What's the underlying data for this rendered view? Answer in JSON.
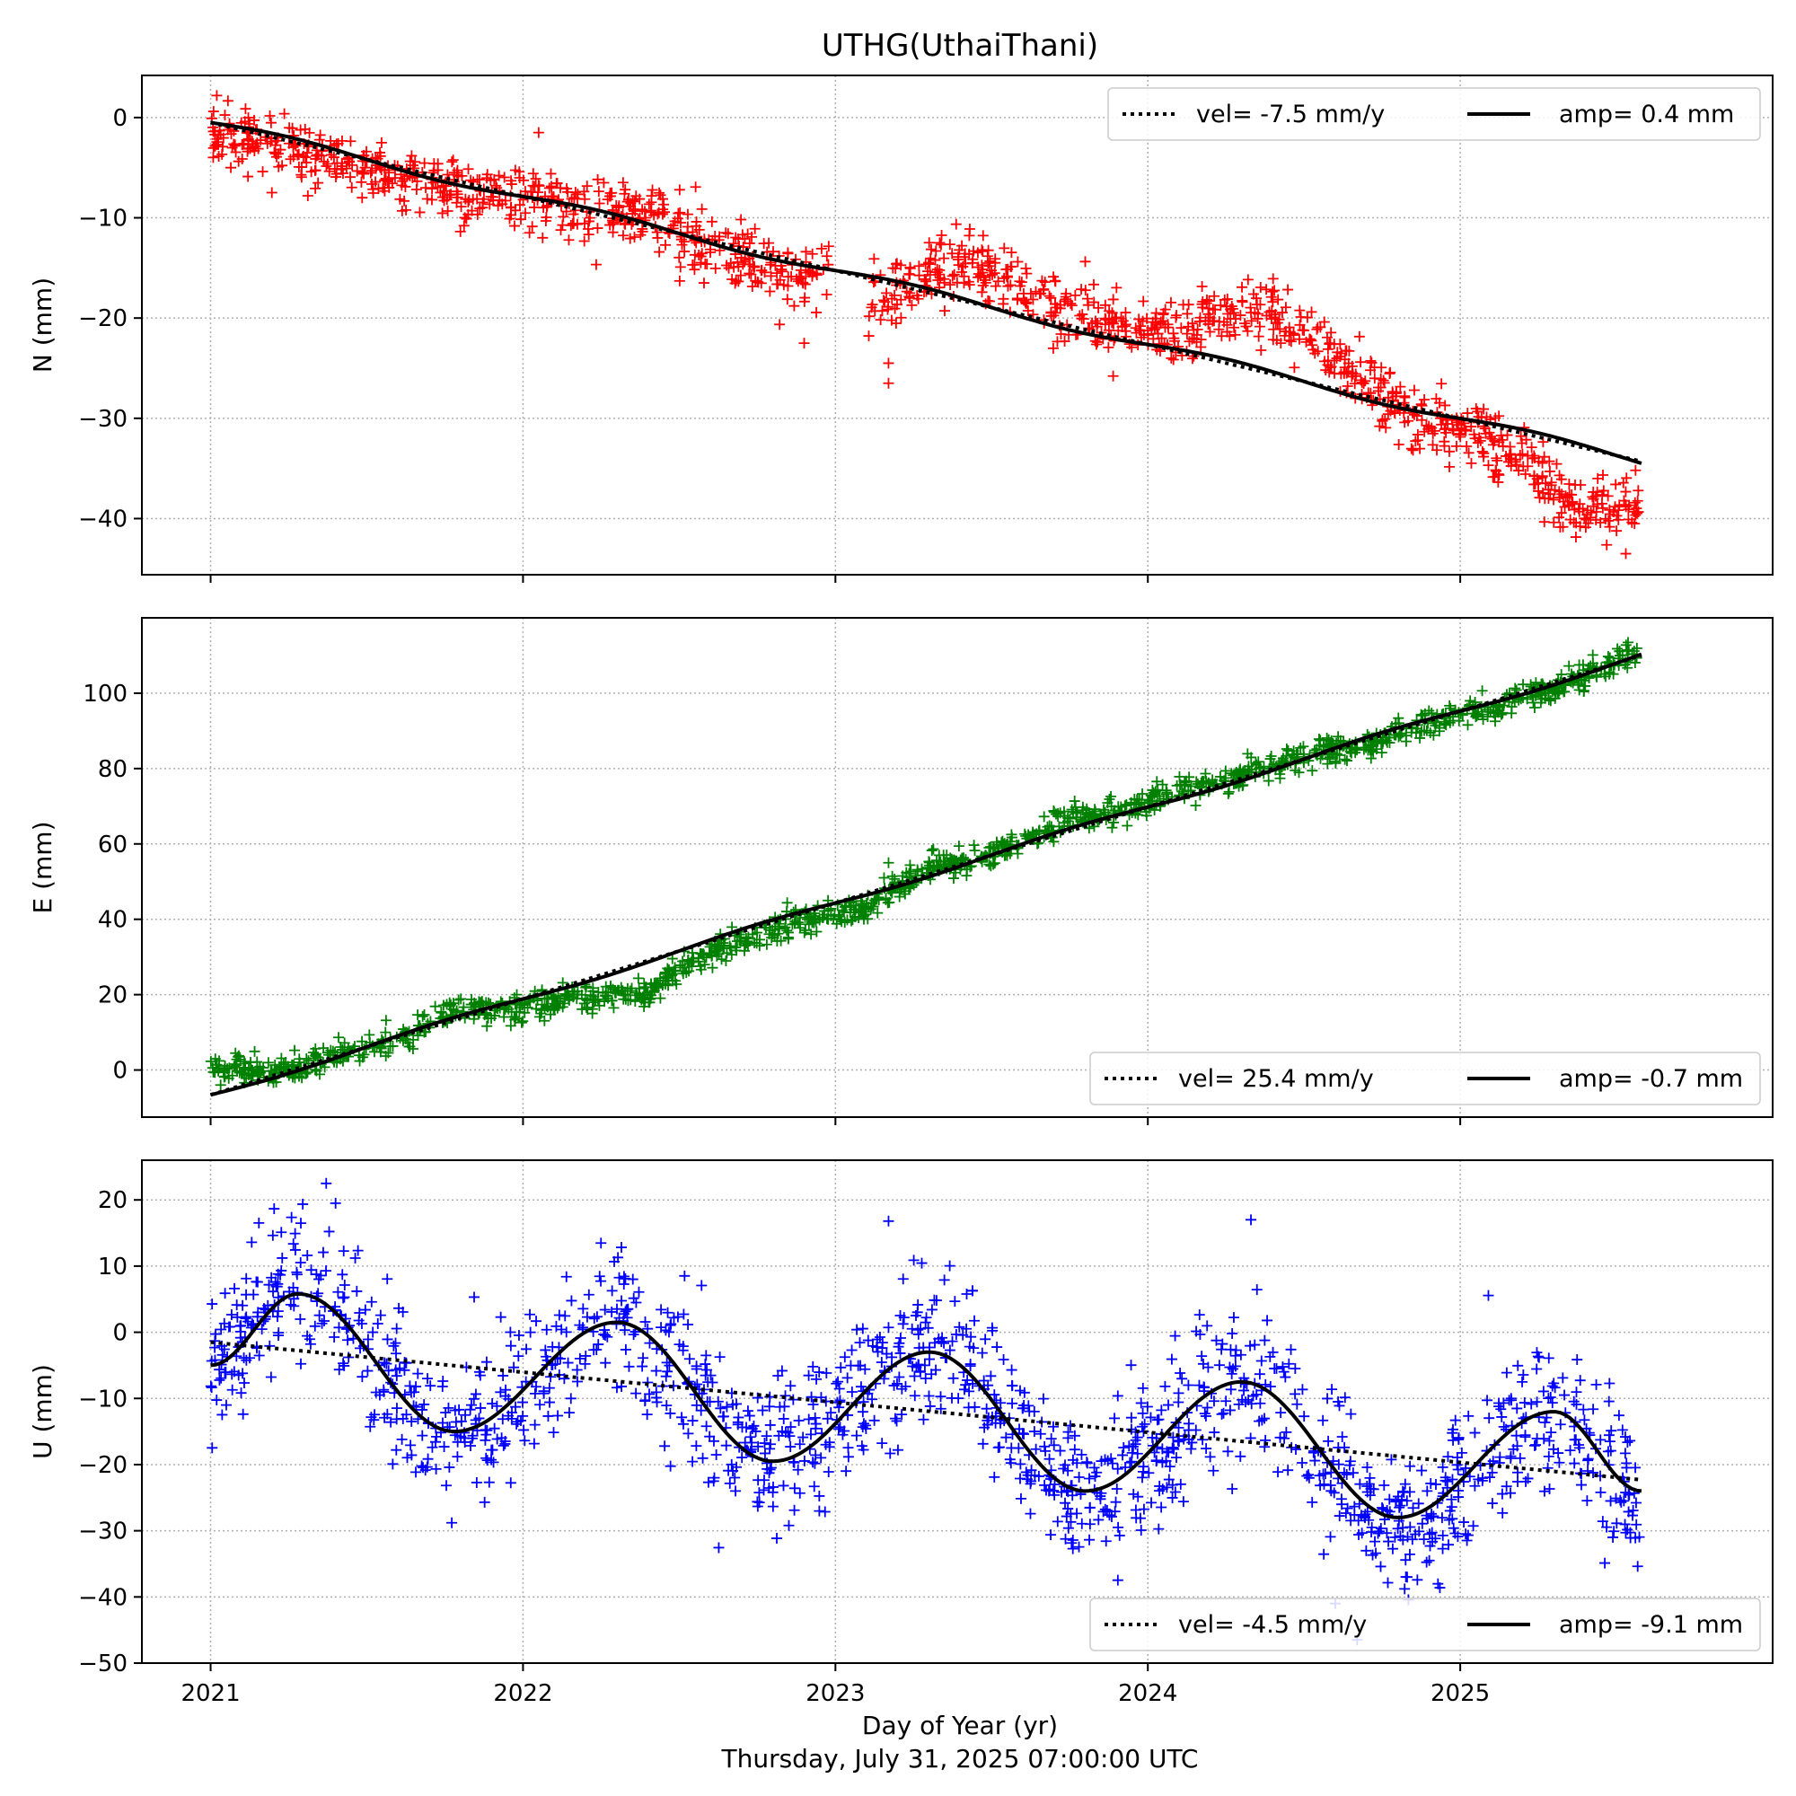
{
  "figure": {
    "title": "UTHG(UthaiThani)",
    "xlabel": "Day of Year (yr)",
    "timestamp": "Thursday, July 31, 2025 07:00:00 UTC"
  },
  "chart_data": [
    {
      "type": "scatter",
      "panel": "N",
      "ylabel": "N (mm)",
      "xlim": [
        2020.78,
        2026.0
      ],
      "ylim": [
        -45.6,
        4.2
      ],
      "xticks": [
        2021,
        2022,
        2023,
        2024,
        2025
      ],
      "yticks": [
        -40,
        -30,
        -20,
        -10,
        0
      ],
      "grid": true,
      "legend_position": "top-right",
      "marker": "+",
      "marker_color": "#ff0000",
      "observations_x_range": [
        2021.0,
        2025.58
      ],
      "observations_trend": [
        {
          "x": 2021.0,
          "y": -1
        },
        {
          "x": 2021.2,
          "y": -3
        },
        {
          "x": 2021.4,
          "y": -4.5
        },
        {
          "x": 2021.6,
          "y": -6
        },
        {
          "x": 2021.8,
          "y": -7.5
        },
        {
          "x": 2022.0,
          "y": -8
        },
        {
          "x": 2022.2,
          "y": -9.5
        },
        {
          "x": 2022.4,
          "y": -9.5
        },
        {
          "x": 2022.6,
          "y": -13
        },
        {
          "x": 2022.8,
          "y": -15
        },
        {
          "x": 2023.0,
          "y": -17
        },
        {
          "x": 2023.2,
          "y": -17.5
        },
        {
          "x": 2023.4,
          "y": -14
        },
        {
          "x": 2023.6,
          "y": -17
        },
        {
          "x": 2023.8,
          "y": -20
        },
        {
          "x": 2024.0,
          "y": -21
        },
        {
          "x": 2024.2,
          "y": -20
        },
        {
          "x": 2024.4,
          "y": -19.5
        },
        {
          "x": 2024.6,
          "y": -24
        },
        {
          "x": 2024.8,
          "y": -29
        },
        {
          "x": 2025.0,
          "y": -31
        },
        {
          "x": 2025.2,
          "y": -34
        },
        {
          "x": 2025.35,
          "y": -39
        },
        {
          "x": 2025.58,
          "y": -39
        }
      ],
      "observation_scatter_mm": 1.6,
      "outliers": [
        {
          "x": 2022.05,
          "y": -1.5
        },
        {
          "x": 2022.9,
          "y": -22.5
        },
        {
          "x": 2023.17,
          "y": -24.5
        },
        {
          "x": 2023.17,
          "y": -26.5
        },
        {
          "x": 2025.53,
          "y": -43.5
        }
      ],
      "velocity_fit": {
        "label": "vel= -7.5 mm/y",
        "style": "dotted",
        "velocity_mm_per_yr": -7.5,
        "start": [
          2021.0,
          -0.5
        ],
        "end": [
          2025.58,
          -34.3
        ]
      },
      "seasonal_fit": {
        "label": "amp= 0.4 mm",
        "style": "solid",
        "amplitude_mm": 0.4,
        "phase_yr": 0.25
      }
    },
    {
      "type": "scatter",
      "panel": "E",
      "ylabel": "E (mm)",
      "xlim": [
        2020.78,
        2026.0
      ],
      "ylim": [
        -12.5,
        120
      ],
      "xticks": [
        2021,
        2022,
        2023,
        2024,
        2025
      ],
      "yticks": [
        0,
        20,
        40,
        60,
        80,
        100
      ],
      "grid": true,
      "legend_position": "bottom-right",
      "marker": "+",
      "marker_color": "#008000",
      "observations_x_range": [
        2021.0,
        2025.58
      ],
      "observations_trend": [
        {
          "x": 2021.0,
          "y": 1
        },
        {
          "x": 2021.2,
          "y": -1
        },
        {
          "x": 2021.4,
          "y": 4
        },
        {
          "x": 2021.6,
          "y": 8
        },
        {
          "x": 2021.8,
          "y": 16
        },
        {
          "x": 2022.0,
          "y": 17
        },
        {
          "x": 2022.2,
          "y": 19
        },
        {
          "x": 2022.4,
          "y": 20
        },
        {
          "x": 2022.5,
          "y": 27
        },
        {
          "x": 2022.7,
          "y": 34
        },
        {
          "x": 2022.9,
          "y": 40
        },
        {
          "x": 2023.1,
          "y": 43
        },
        {
          "x": 2023.3,
          "y": 54
        },
        {
          "x": 2023.5,
          "y": 57
        },
        {
          "x": 2023.7,
          "y": 65
        },
        {
          "x": 2023.9,
          "y": 69
        },
        {
          "x": 2024.1,
          "y": 74
        },
        {
          "x": 2024.3,
          "y": 78
        },
        {
          "x": 2024.5,
          "y": 84
        },
        {
          "x": 2024.7,
          "y": 86
        },
        {
          "x": 2024.9,
          "y": 92
        },
        {
          "x": 2025.1,
          "y": 96
        },
        {
          "x": 2025.3,
          "y": 101
        },
        {
          "x": 2025.58,
          "y": 111
        }
      ],
      "observation_scatter_mm": 1.8,
      "outliers": [
        {
          "x": 2023.17,
          "y": 55
        }
      ],
      "velocity_fit": {
        "label": "vel= 25.4 mm/y",
        "style": "dotted",
        "velocity_mm_per_yr": 25.4,
        "start": [
          2021.0,
          -6.6
        ],
        "end": [
          2025.58,
          110
        ]
      },
      "seasonal_fit": {
        "label": "amp= -0.7 mm",
        "style": "solid",
        "amplitude_mm": -0.7,
        "phase_yr": 0.25
      }
    },
    {
      "type": "scatter",
      "panel": "U",
      "ylabel": "U (mm)",
      "xlim": [
        2020.78,
        2026.0
      ],
      "ylim": [
        -50,
        26
      ],
      "xticks": [
        2021,
        2022,
        2023,
        2024,
        2025
      ],
      "yticks": [
        -50,
        -40,
        -30,
        -20,
        -10,
        0,
        10,
        20
      ],
      "grid": true,
      "legend_position": "bottom-right",
      "marker": "+",
      "marker_color": "#0000ff",
      "observations_x_range": [
        2021.0,
        2025.58
      ],
      "observations_follow": "seasonal_fit",
      "observation_scatter_mm": 5.5,
      "outliers": [
        {
          "x": 2021.37,
          "y": 22.5
        },
        {
          "x": 2021.4,
          "y": 19.5
        },
        {
          "x": 2023.17,
          "y": 16.8
        },
        {
          "x": 2024.33,
          "y": 17
        },
        {
          "x": 2024.67,
          "y": -46.5
        },
        {
          "x": 2024.6,
          "y": -41
        },
        {
          "x": 2024.83,
          "y": -37
        }
      ],
      "velocity_fit": {
        "label": "vel= -4.5 mm/y",
        "style": "dotted",
        "velocity_mm_per_yr": -4.5,
        "start": [
          2021.0,
          -1.5
        ],
        "end": [
          2025.58,
          -22.3
        ]
      },
      "seasonal_fit": {
        "label": "amp= -9.1 mm",
        "style": "solid",
        "curve": [
          {
            "x": 2021.0,
            "y": -5
          },
          {
            "x": 2021.28,
            "y": 5.8
          },
          {
            "x": 2021.78,
            "y": -15
          },
          {
            "x": 2022.3,
            "y": 1.5
          },
          {
            "x": 2022.8,
            "y": -19.5
          },
          {
            "x": 2023.3,
            "y": -3
          },
          {
            "x": 2023.8,
            "y": -24
          },
          {
            "x": 2024.3,
            "y": -7.5
          },
          {
            "x": 2024.8,
            "y": -28
          },
          {
            "x": 2025.3,
            "y": -12
          },
          {
            "x": 2025.58,
            "y": -24
          }
        ]
      }
    }
  ]
}
